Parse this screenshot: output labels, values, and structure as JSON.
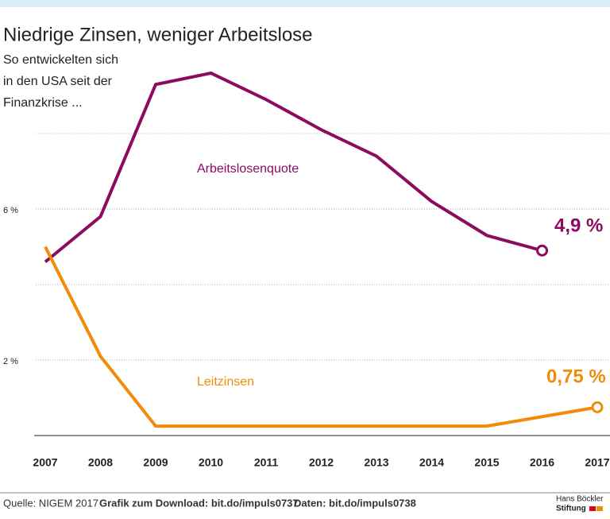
{
  "chart_data": {
    "type": "line",
    "title": "Niedrige Zinsen, weniger Arbeitslose",
    "subtitle_lines": [
      "So entwickelten sich",
      "in den USA seit der",
      "Finanzkrise ..."
    ],
    "categories": [
      "2007",
      "2008",
      "2009",
      "2010",
      "2011",
      "2012",
      "2013",
      "2014",
      "2015",
      "2016",
      "2017"
    ],
    "series": [
      {
        "name": "Arbeitslosenquote",
        "color": "#8c0b5f",
        "values": [
          4.6,
          5.8,
          9.3,
          9.6,
          8.9,
          8.1,
          7.4,
          6.2,
          5.3,
          4.9,
          null
        ],
        "value_labels": [
          null,
          null,
          null,
          null,
          null,
          null,
          null,
          null,
          null,
          "4,9 %",
          null
        ]
      },
      {
        "name": "Leitzinsen",
        "color": "#f08c0a",
        "values": [
          5.0,
          2.1,
          0.25,
          0.25,
          0.25,
          0.25,
          0.25,
          0.25,
          0.25,
          0.5,
          0.75
        ],
        "value_labels": [
          null,
          null,
          null,
          null,
          null,
          null,
          null,
          null,
          null,
          null,
          "0,75 %"
        ]
      }
    ],
    "ylim": [
      0,
      10
    ],
    "yticks": [
      {
        "value": 2,
        "label": "2 %"
      },
      {
        "value": 4,
        "label": null
      },
      {
        "value": 6,
        "label": "6 %"
      },
      {
        "value": 8,
        "label": null
      }
    ],
    "grid": true,
    "footer": {
      "source": "Quelle: NIGEM 2017",
      "download": "Grafik zum Download: bit.do/impuls0737",
      "data": "Daten: bit.do/impuls0738",
      "logo_line1": "Hans Böckler",
      "logo_line2": "Stiftung"
    }
  }
}
